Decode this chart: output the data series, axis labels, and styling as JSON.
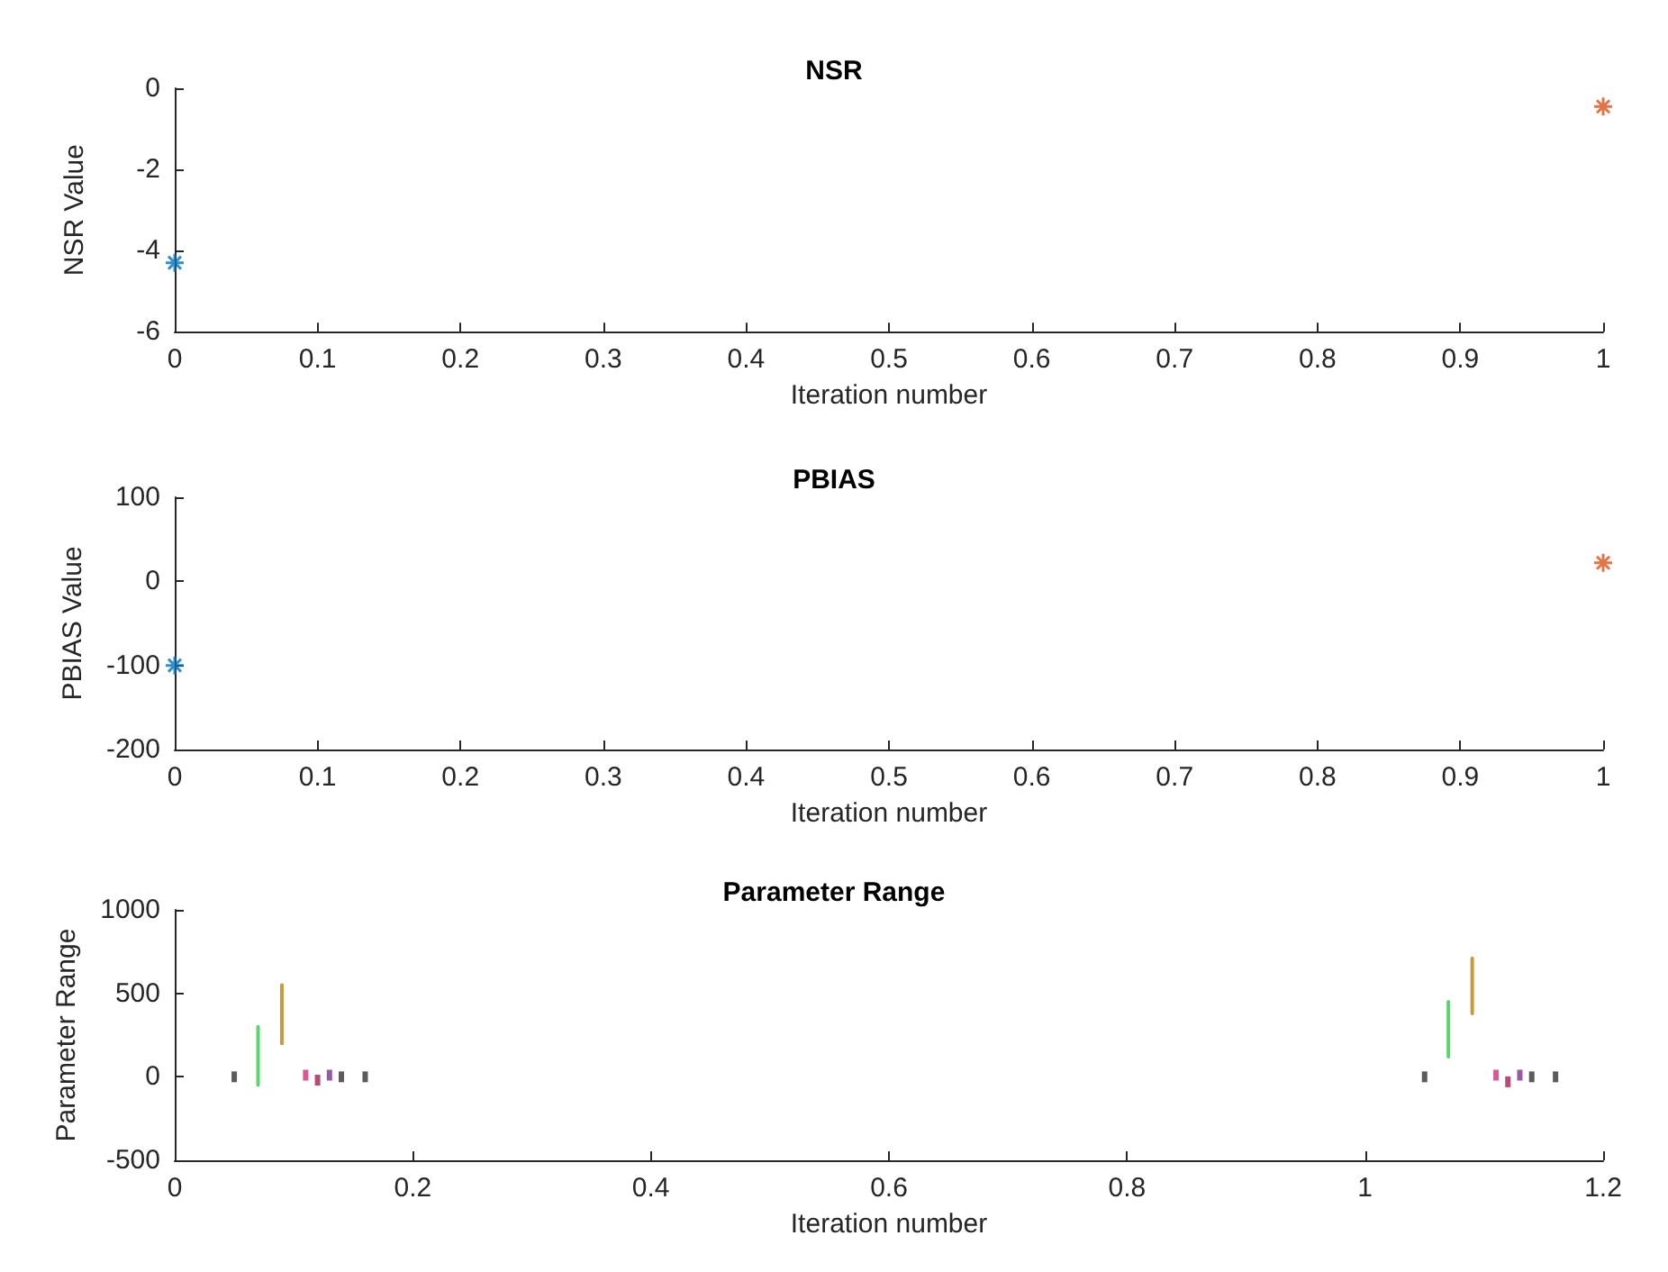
{
  "chart_data": [
    {
      "type": "scatter",
      "title": "NSR",
      "xlabel": "Iteration number",
      "ylabel": "NSR Value",
      "xlim": [
        0,
        1
      ],
      "xticks": [
        0,
        0.1,
        0.2,
        0.3,
        0.4,
        0.5,
        0.6,
        0.7,
        0.8,
        0.9,
        1
      ],
      "ylim": [
        -6,
        0
      ],
      "yticks": [
        -6,
        -4,
        -2,
        0
      ],
      "grid": false,
      "marker": "cross",
      "series": [
        {
          "color": "#0072bd",
          "x": [
            0
          ],
          "values": [
            -4.3
          ]
        },
        {
          "color": "#d95319",
          "x": [
            1
          ],
          "values": [
            -0.45
          ]
        }
      ]
    },
    {
      "type": "scatter",
      "title": "PBIAS",
      "xlabel": "Iteration number",
      "ylabel": "PBIAS Value",
      "xlim": [
        0,
        1
      ],
      "xticks": [
        0,
        0.1,
        0.2,
        0.3,
        0.4,
        0.5,
        0.6,
        0.7,
        0.8,
        0.9,
        1
      ],
      "ylim": [
        -200,
        100
      ],
      "yticks": [
        -200,
        -100,
        0,
        100
      ],
      "grid": false,
      "marker": "cross",
      "series": [
        {
          "color": "#0072bd",
          "x": [
            0
          ],
          "values": [
            -100
          ]
        },
        {
          "color": "#d95319",
          "x": [
            1
          ],
          "values": [
            22
          ]
        }
      ]
    },
    {
      "type": "line",
      "title": "Parameter Range",
      "xlabel": "Iteration number",
      "ylabel": "Parameter Range",
      "xlim": [
        0,
        1.2
      ],
      "xticks": [
        0,
        0.2,
        0.4,
        0.6,
        0.8,
        1,
        1.2
      ],
      "ylim": [
        -500,
        1000
      ],
      "yticks": [
        -500,
        0,
        500,
        1000
      ],
      "grid": false,
      "marker": "none",
      "line_style": "solid",
      "series": [
        {
          "color": "#59d66b",
          "x": [
            0.07,
            0.07
          ],
          "values": [
            -50,
            300
          ]
        },
        {
          "color": "#c89a3a",
          "x": [
            0.09,
            0.09
          ],
          "values": [
            200,
            550
          ]
        },
        {
          "color": "#59d66b",
          "x": [
            1.07,
            1.07
          ],
          "values": [
            120,
            450
          ]
        },
        {
          "color": "#c89a3a",
          "x": [
            1.09,
            1.09
          ],
          "values": [
            380,
            710
          ]
        },
        {
          "type": "scatter",
          "marker": "square",
          "color": "#333333",
          "x": [
            0.05,
            0.14,
            0.16,
            1.05,
            1.14,
            1.16
          ],
          "values": [
            0,
            0,
            0,
            0,
            0,
            0
          ]
        },
        {
          "type": "scatter",
          "marker": "square",
          "color": "#d0307a",
          "x": [
            0.11,
            1.11
          ],
          "values": [
            10,
            10
          ]
        },
        {
          "type": "scatter",
          "marker": "square",
          "color": "#a02050",
          "x": [
            0.12,
            1.12
          ],
          "values": [
            -20,
            -30
          ]
        },
        {
          "type": "scatter",
          "marker": "square",
          "color": "#7e2f8e",
          "x": [
            0.13,
            1.13
          ],
          "values": [
            10,
            10
          ]
        }
      ]
    }
  ]
}
